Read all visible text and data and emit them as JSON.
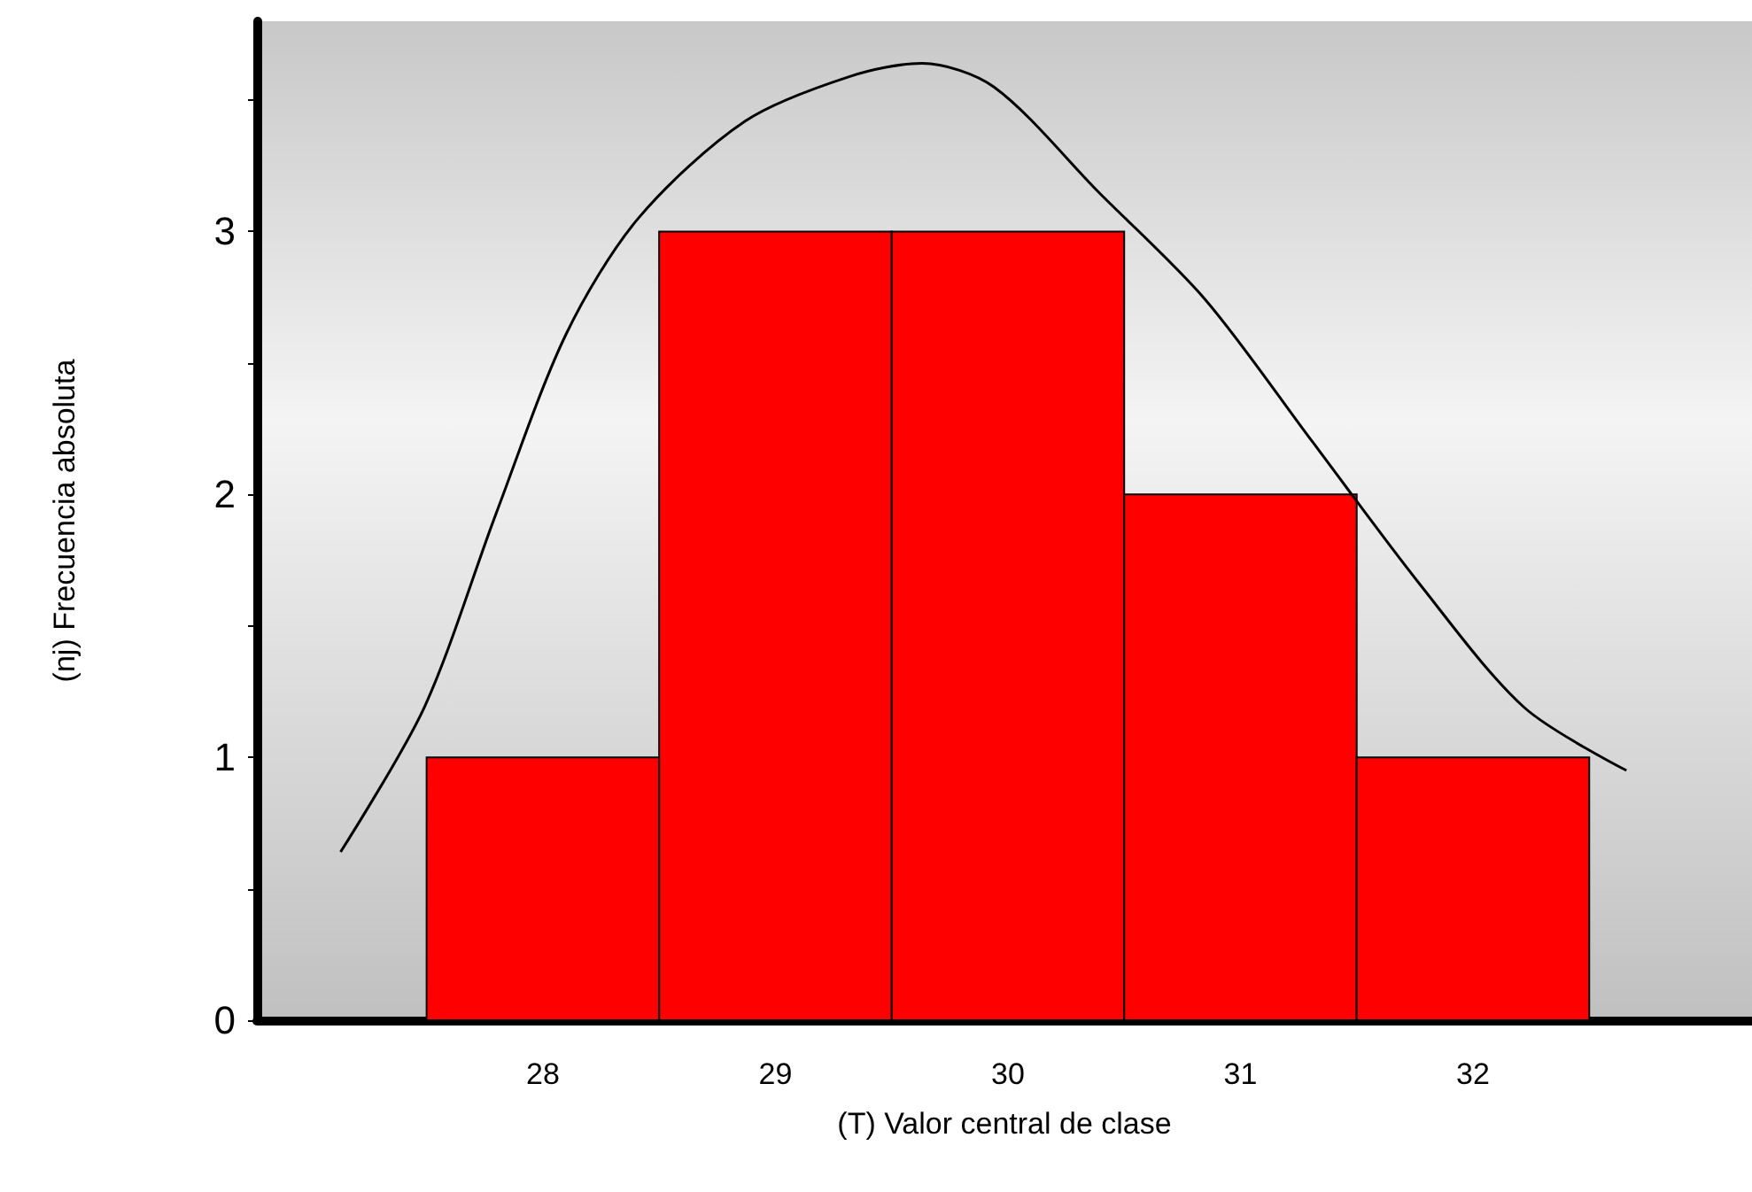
{
  "chart_data": {
    "type": "histogram",
    "xlabel": "(T) Valor central de clase",
    "ylabel": "(nj) Frecuencia absoluta",
    "bins": [
      27.5,
      28.5,
      29.5,
      30.5,
      31.5,
      32.5
    ],
    "values": [
      1,
      3,
      3,
      2,
      1
    ],
    "color": "#ff0000",
    "series": [
      {
        "type": "line",
        "x": [
          27.13,
          27.49,
          27.8,
          28.1,
          28.41,
          28.87,
          29.32,
          29.63,
          29.94,
          30.39,
          30.85,
          31.31,
          31.77,
          32.22,
          32.66
        ],
        "values": [
          0.64,
          1.19,
          1.93,
          2.61,
          3.05,
          3.42,
          3.59,
          3.64,
          3.55,
          3.15,
          2.74,
          2.2,
          1.66,
          1.19,
          0.95
        ],
        "color": "#000000"
      }
    ],
    "xlim": [
      26.77,
      33.2
    ],
    "xticks": [
      28,
      29,
      30,
      31,
      32
    ],
    "ylim": [
      0,
      3.8
    ],
    "yticks": [
      0,
      {
        "value": 0.5,
        "label": null
      },
      1,
      {
        "value": 1.5,
        "label": null
      },
      2,
      {
        "value": 2.5,
        "label": null
      },
      3,
      {
        "value": 3.5,
        "label": null
      }
    ],
    "grid": false
  }
}
